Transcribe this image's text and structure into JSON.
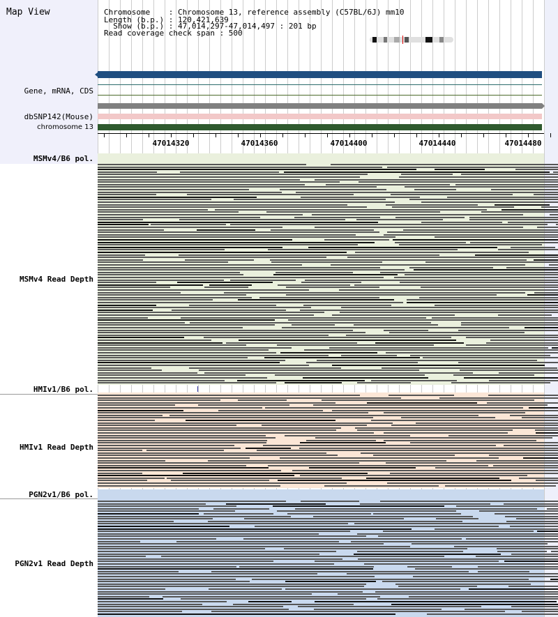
{
  "title": "Map View",
  "info": {
    "chromosome_line": "Chromosome    : Chromosome 13, reference assembly (C57BL/6J) mm10",
    "length_line": "Length (b.p.) : 120,421,639",
    "show_line": "  Show (b.p.) : 47,014,297-47,014,497 : 201 bp",
    "coverage_line": "Read coverage check span : 500"
  },
  "tracks": {
    "gene": "Gene, mRNA, CDS",
    "dbsnp": "dbSNP142(Mouse)",
    "chrom": "chromosome 13"
  },
  "ruler": {
    "labels": [
      "47014320",
      "47014360",
      "47014400",
      "47014440",
      "47014480"
    ]
  },
  "sections": {
    "msm_pol": "MSMv4/B6 pol.",
    "msm_depth": "MSMv4 Read Depth",
    "hmi_pol": "HMIv1/B6 pol.",
    "hmi_depth": "HMIv1 Read Depth",
    "pgn_pol": "PGN2v1/B6 pol.",
    "pgn_depth": "PGN2v1 Read Depth"
  },
  "colors": {
    "gene_bar": "#1f4e80",
    "snp_bar": "#808080",
    "snp_highlight": "#f2c8c8",
    "chrom_bar": "#2e5a2e",
    "msm_bg": "#eaf0dd",
    "hmi_bg": "#fbe6d6",
    "pgn_bg": "#c9d9ee",
    "read": "#555555",
    "read_dark": "#111111"
  }
}
